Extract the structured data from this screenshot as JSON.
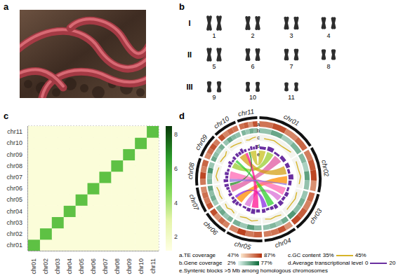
{
  "photo": {
    "label": "a"
  },
  "karyotype": {
    "label": "b",
    "groups": [
      {
        "label": "I",
        "chromosomes": [
          1,
          2,
          3,
          4
        ]
      },
      {
        "label": "II",
        "chromosomes": [
          5,
          6,
          7,
          8
        ]
      },
      {
        "label": "III",
        "chromosomes": [
          9,
          10,
          11
        ]
      }
    ]
  },
  "chart_data": [
    {
      "label": "c",
      "type": "heatmap",
      "categories": [
        "chr01",
        "chr02",
        "chr03",
        "chr04",
        "chr05",
        "chr06",
        "chr07",
        "chr08",
        "chr09",
        "chr10",
        "chr11"
      ],
      "cells": [
        [
          5.5,
          1.5,
          1.5,
          1.5,
          1.5,
          1.5,
          1.5,
          1.5,
          1.5,
          1.5,
          1.5
        ],
        [
          1.5,
          5.5,
          1.5,
          1.5,
          1.5,
          1.5,
          1.5,
          1.5,
          1.5,
          1.5,
          1.5
        ],
        [
          1.5,
          1.5,
          5.5,
          1.5,
          1.5,
          1.5,
          1.5,
          1.5,
          1.5,
          1.5,
          1.5
        ],
        [
          1.5,
          1.5,
          1.5,
          5.5,
          1.5,
          1.5,
          1.5,
          1.5,
          1.5,
          1.5,
          1.5
        ],
        [
          1.5,
          1.5,
          1.5,
          1.5,
          5.5,
          1.5,
          1.5,
          1.5,
          1.5,
          1.5,
          1.5
        ],
        [
          1.5,
          1.5,
          1.5,
          1.5,
          1.5,
          5.5,
          1.5,
          1.5,
          1.5,
          1.5,
          1.5
        ],
        [
          1.5,
          1.5,
          1.5,
          1.5,
          1.5,
          1.5,
          5.5,
          1.5,
          1.5,
          1.5,
          1.5
        ],
        [
          1.5,
          1.5,
          1.5,
          1.5,
          1.5,
          1.5,
          1.5,
          5.5,
          1.5,
          1.5,
          1.5
        ],
        [
          1.5,
          1.5,
          1.5,
          1.5,
          1.5,
          1.5,
          1.5,
          1.5,
          5.5,
          1.5,
          1.5
        ],
        [
          1.5,
          1.5,
          1.5,
          1.5,
          1.5,
          1.5,
          1.5,
          1.5,
          1.5,
          5.5,
          1.5
        ],
        [
          1.5,
          1.5,
          1.5,
          1.5,
          1.5,
          1.5,
          1.5,
          1.5,
          1.5,
          1.5,
          5.5
        ]
      ],
      "colorbar": {
        "range": [
          1.2,
          8.5
        ],
        "ticks": [
          2,
          4,
          6,
          8
        ]
      },
      "grid": true
    },
    {
      "label": "d",
      "type": "circos",
      "chromosomes": [
        "chr01",
        "chr02",
        "chr03",
        "chr04",
        "chr05",
        "chr06",
        "chr07",
        "chr08",
        "chr09",
        "chr10",
        "chr11"
      ],
      "sizes": [
        33,
        25,
        22,
        18,
        20,
        14,
        14,
        15,
        13,
        13,
        11
      ],
      "tracks": [
        {
          "key": "a",
          "name": "a.TE coverage",
          "type": "heatmap",
          "colors": [
            "#fbe6cc",
            "#b4300c"
          ],
          "range": [
            {
              "value": 47,
              "label": "47%"
            },
            {
              "value": 87,
              "label": "87%"
            }
          ],
          "values": [
            [
              72,
              80,
              68,
              75
            ],
            [
              70,
              78,
              82,
              66
            ],
            [
              74,
              69,
              77,
              81
            ],
            [
              65,
              79,
              72,
              70
            ],
            [
              76,
              71,
              83,
              68
            ],
            [
              69,
              74,
              66,
              80
            ],
            [
              78,
              70,
              73,
              67
            ],
            [
              71,
              82,
              69,
              75
            ],
            [
              67,
              73,
              79,
              70
            ],
            [
              80,
              68,
              74,
              72
            ],
            [
              73,
              77,
              65,
              79
            ]
          ]
        },
        {
          "key": "b",
          "name": "b.Gene coverage",
          "type": "heatmap",
          "colors": [
            "#e6f7f3",
            "#0a6a38"
          ],
          "range": [
            {
              "value": 2,
              "label": "2%"
            },
            {
              "value": 77,
              "label": "77%"
            }
          ],
          "values": [
            [
              30,
              45,
              25,
              38
            ],
            [
              35,
              22,
              48,
              30
            ],
            [
              28,
              40,
              33,
              52
            ],
            [
              42,
              26,
              36,
              31
            ],
            [
              33,
              50,
              27,
              39
            ],
            [
              38,
              29,
              44,
              34
            ],
            [
              25,
              41,
              32,
              47
            ],
            [
              36,
              30,
              55,
              28
            ],
            [
              44,
              33,
              27,
              40
            ],
            [
              29,
              46,
              35,
              31
            ],
            [
              37,
              28,
              42,
              33
            ]
          ]
        },
        {
          "key": "c",
          "name": "c.GC content",
          "type": "line",
          "color": "#d6b42a",
          "range": [
            {
              "value": 35,
              "label": "35%"
            },
            {
              "value": 45,
              "label": "45%"
            }
          ],
          "values": [
            [
              39,
              40,
              38,
              41
            ],
            [
              40,
              39,
              41,
              39
            ],
            [
              38,
              40,
              39,
              40
            ],
            [
              41,
              39,
              40,
              38
            ],
            [
              39,
              41,
              38,
              40
            ],
            [
              40,
              38,
              41,
              39
            ],
            [
              39,
              40,
              39,
              41
            ],
            [
              38,
              41,
              40,
              39
            ],
            [
              40,
              39,
              38,
              41
            ],
            [
              41,
              40,
              39,
              38
            ],
            [
              39,
              38,
              40,
              41
            ]
          ]
        },
        {
          "key": "d",
          "name": "d.Average transcriptional level",
          "type": "bar",
          "color": "#6a2fa0",
          "range": [
            {
              "value": 0,
              "label": "0"
            },
            {
              "value": 20,
              "label": "20"
            }
          ],
          "values": [
            [
              8,
              12,
              6,
              10
            ],
            [
              11,
              7,
              14,
              9
            ],
            [
              6,
              10,
              8,
              13
            ],
            [
              12,
              9,
              7,
              11
            ],
            [
              9,
              14,
              10,
              6
            ],
            [
              7,
              11,
              13,
              8
            ],
            [
              10,
              6,
              9,
              12
            ],
            [
              13,
              8,
              11,
              7
            ],
            [
              8,
              12,
              6,
              10
            ],
            [
              11,
              9,
              14,
              8
            ],
            [
              6,
              10,
              8,
              12
            ]
          ]
        }
      ],
      "links": {
        "key": "e",
        "name": "e.Syntenic blocks >5 Mb among homologous chromosomes",
        "pairs": [
          {
            "from": {
              "chr": "chr01",
              "start": 0,
              "end": 8
            },
            "to": {
              "chr": "chr11",
              "start": 2,
              "end": 9
            },
            "color": "#c8c020"
          },
          {
            "from": {
              "chr": "chr01",
              "start": 10,
              "end": 18
            },
            "to": {
              "chr": "chr09",
              "start": 1,
              "end": 8
            },
            "color": "#9acd32"
          },
          {
            "from": {
              "chr": "chr01",
              "start": 20,
              "end": 30
            },
            "to": {
              "chr": "chr07",
              "start": 3,
              "end": 11
            },
            "color": "#e05aa0"
          },
          {
            "from": {
              "chr": "chr02",
              "start": 2,
              "end": 12
            },
            "to": {
              "chr": "chr10",
              "start": 2,
              "end": 10
            },
            "color": "#d4a017"
          },
          {
            "from": {
              "chr": "chr02",
              "start": 14,
              "end": 23
            },
            "to": {
              "chr": "chr06",
              "start": 2,
              "end": 10
            },
            "color": "#ff8c00"
          },
          {
            "from": {
              "chr": "chr03",
              "start": 2,
              "end": 11
            },
            "to": {
              "chr": "chr08",
              "start": 4,
              "end": 13
            },
            "color": "#ff69b4"
          },
          {
            "from": {
              "chr": "chr03",
              "start": 13,
              "end": 20
            },
            "to": {
              "chr": "chr05",
              "start": 12,
              "end": 19
            },
            "color": "#da70d6"
          },
          {
            "from": {
              "chr": "chr04",
              "start": 2,
              "end": 10
            },
            "to": {
              "chr": "chr09",
              "start": 9,
              "end": 12
            },
            "color": "#32cd32"
          },
          {
            "from": {
              "chr": "chr04",
              "start": 11,
              "end": 17
            },
            "to": {
              "chr": "chr06",
              "start": 10,
              "end": 13
            },
            "color": "#8a2be2"
          },
          {
            "from": {
              "chr": "chr05",
              "start": 2,
              "end": 10
            },
            "to": {
              "chr": "chr10",
              "start": 10,
              "end": 13
            },
            "color": "#ff1493"
          },
          {
            "from": {
              "chr": "chr07",
              "start": 11,
              "end": 14
            },
            "to": {
              "chr": "chr11",
              "start": 0,
              "end": 2
            },
            "color": "#228b22"
          },
          {
            "from": {
              "chr": "chr08",
              "start": 0,
              "end": 4
            },
            "to": {
              "chr": "chr02",
              "start": 23,
              "end": 25
            },
            "color": "#9370db"
          }
        ]
      }
    }
  ]
}
